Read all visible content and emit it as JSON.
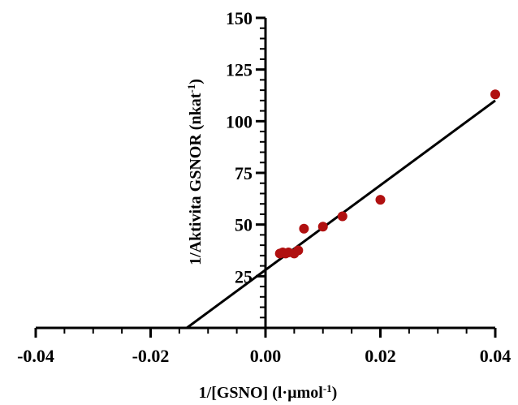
{
  "chart_data": {
    "type": "scatter",
    "xlabel": "1/[GSNO] (l·µmol",
    "xlabel_sup": "-1",
    "xlabel_end": ")",
    "ylabel": "1/Aktivita GSNOR (nkat",
    "ylabel_sup": "-1",
    "ylabel_end": ")",
    "xlim": [
      -0.04,
      0.04
    ],
    "ylim": [
      0,
      150
    ],
    "x_ticks": [
      -0.04,
      -0.02,
      0.0,
      0.02,
      0.04
    ],
    "x_tick_labels": [
      "-0.04",
      "-0.02",
      "0.00",
      "0.02",
      "0.04"
    ],
    "y_ticks": [
      25,
      50,
      75,
      100,
      125,
      150
    ],
    "y_tick_labels": [
      "25",
      "50",
      "75",
      "100",
      "125",
      "150"
    ],
    "grid": false,
    "point_color": "#b01010",
    "points": [
      {
        "x": 0.0025,
        "y": 36
      },
      {
        "x": 0.003,
        "y": 36.5
      },
      {
        "x": 0.0035,
        "y": 36
      },
      {
        "x": 0.004,
        "y": 36.5
      },
      {
        "x": 0.005,
        "y": 36
      },
      {
        "x": 0.0057,
        "y": 37.5
      },
      {
        "x": 0.0067,
        "y": 48
      },
      {
        "x": 0.01,
        "y": 49
      },
      {
        "x": 0.0134,
        "y": 54
      },
      {
        "x": 0.02,
        "y": 62
      },
      {
        "x": 0.04,
        "y": 113
      }
    ],
    "fit_line": {
      "x": [
        -0.0137,
        0.04
      ],
      "y": [
        0,
        110
      ]
    }
  }
}
